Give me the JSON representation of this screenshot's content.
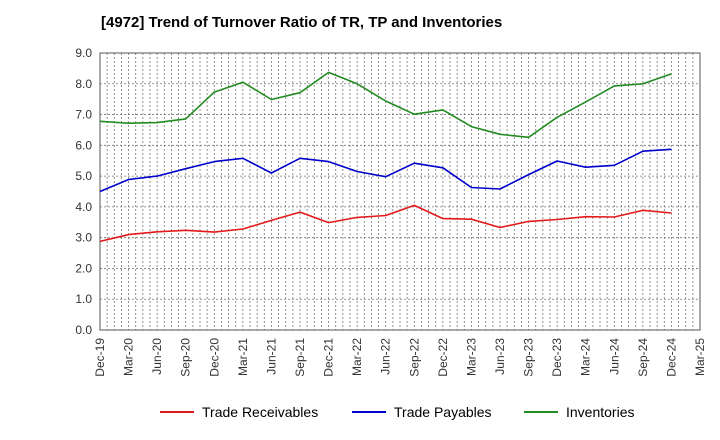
{
  "chart_data": {
    "type": "line",
    "title": "[4972]  Trend of Turnover Ratio of TR, TP and Inventories",
    "xlabel": "",
    "ylabel": "",
    "ylim": [
      0,
      9
    ],
    "y_ticks": [
      "0.0",
      "1.0",
      "2.0",
      "3.0",
      "4.0",
      "5.0",
      "6.0",
      "7.0",
      "8.0",
      "9.0"
    ],
    "x": [
      "Dec-19",
      "Mar-20",
      "Jun-20",
      "Sep-20",
      "Dec-20",
      "Mar-21",
      "Jun-21",
      "Sep-21",
      "Dec-21",
      "Mar-22",
      "Jun-22",
      "Sep-22",
      "Dec-22",
      "Mar-23",
      "Jun-23",
      "Sep-23",
      "Dec-23",
      "Mar-24",
      "Jun-24",
      "Sep-24",
      "Dec-24",
      "Mar-25"
    ],
    "grid": true,
    "legend_position": "bottom",
    "series": [
      {
        "name": "Trade Receivables",
        "color": "#e31a1c",
        "values": [
          2.88,
          3.1,
          3.19,
          3.24,
          3.18,
          3.28,
          3.56,
          3.83,
          3.49,
          3.66,
          3.72,
          4.05,
          3.62,
          3.6,
          3.33,
          3.53,
          3.59,
          3.68,
          3.67,
          3.89,
          3.8,
          null
        ]
      },
      {
        "name": "Trade Payables",
        "color": "#0000cc",
        "values": [
          4.5,
          4.89,
          5.0,
          5.24,
          5.47,
          5.58,
          5.1,
          5.58,
          5.47,
          5.15,
          4.98,
          5.42,
          5.27,
          4.63,
          4.58,
          5.05,
          5.49,
          5.29,
          5.35,
          5.81,
          5.87,
          null
        ]
      },
      {
        "name": "Inventories",
        "color": "#228b22",
        "values": [
          6.78,
          6.72,
          6.74,
          6.86,
          7.73,
          8.05,
          7.49,
          7.71,
          8.37,
          8.0,
          7.44,
          7.01,
          7.15,
          6.61,
          6.36,
          6.26,
          6.91,
          7.41,
          7.93,
          8.0,
          8.32,
          null
        ]
      }
    ]
  }
}
